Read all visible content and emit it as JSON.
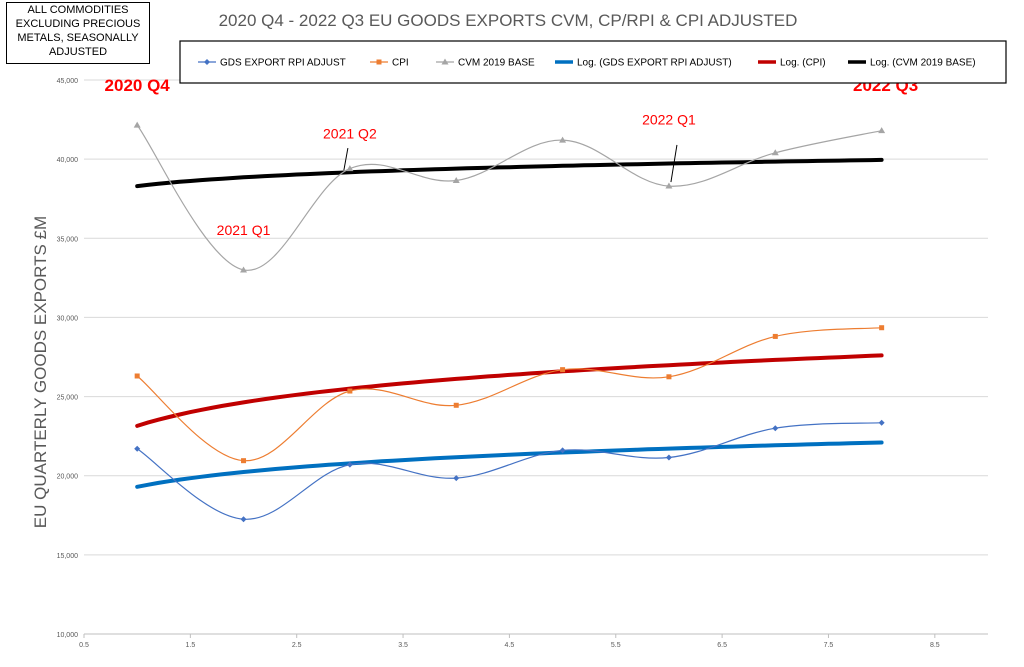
{
  "note_box": [
    "ALL COMMODITIES",
    "EXCLUDING PRECIOUS",
    "METALS, SEASONALLY",
    "ADJUSTED"
  ],
  "chart_data": {
    "type": "line",
    "title": "2020 Q4 - 2022 Q3 EU GOODS EXPORTS CVM, CP/RPI & CPI ADJUSTED",
    "xlabel": "",
    "ylabel": "EU QUARTERLY GOODS EXPORTS £M",
    "xlim": [
      0.5,
      9.0
    ],
    "ylim": [
      10000,
      45000
    ],
    "x_ticks": [
      0.5,
      1.5,
      2.5,
      3.5,
      4.5,
      5.5,
      6.5,
      7.5,
      8.5
    ],
    "x_tick_labels": [
      "0.5",
      "1.5",
      "2.5",
      "3.5",
      "4.5",
      "5.5",
      "6.5",
      "7.5",
      "8.5"
    ],
    "y_ticks": [
      10000,
      15000,
      20000,
      25000,
      30000,
      35000,
      40000,
      45000
    ],
    "y_tick_labels": [
      "10,000",
      "15,000",
      "20,000",
      "25,000",
      "30,000",
      "35,000",
      "40,000",
      "45,000"
    ],
    "grid": "horizontal",
    "legend_position": "top",
    "x": [
      1,
      2,
      3,
      4,
      5,
      6,
      7,
      8
    ],
    "series": [
      {
        "name": "GDS EXPORT RPI ADJUST",
        "color": "#4472C4",
        "marker": "diamond",
        "values": [
          21700,
          17250,
          20700,
          19850,
          21600,
          21150,
          23000,
          23350
        ]
      },
      {
        "name": "CPI",
        "color": "#ED7D31",
        "marker": "square",
        "values": [
          26300,
          20950,
          25350,
          24450,
          26700,
          26250,
          28800,
          29350
        ]
      },
      {
        "name": "CVM 2019 BASE",
        "color": "#A5A5A5",
        "marker": "triangle",
        "values": [
          42150,
          33000,
          39400,
          38650,
          41200,
          38300,
          40400,
          41800
        ]
      }
    ],
    "trendlines": [
      {
        "name": "Log. (GDS EXPORT RPI ADJUST)",
        "color": "#0070C0",
        "start": 19300,
        "end": 22100
      },
      {
        "name": "Log. (CPI)",
        "color": "#C00000",
        "start": 23150,
        "end": 27600
      },
      {
        "name": "Log. (CVM 2019 BASE)",
        "color": "#000000",
        "start": 38300,
        "end": 39950
      }
    ],
    "annotations": [
      {
        "text": "2020 Q4",
        "color": "#FF0000",
        "bold": true
      },
      {
        "text": "2021 Q1",
        "color": "#FF0000",
        "bold": false
      },
      {
        "text": "2021 Q2",
        "color": "#FF0000",
        "bold": false
      },
      {
        "text": "2022 Q1",
        "color": "#FF0000",
        "bold": false
      },
      {
        "text": "2022 Q3",
        "color": "#FF0000",
        "bold": true
      }
    ]
  }
}
